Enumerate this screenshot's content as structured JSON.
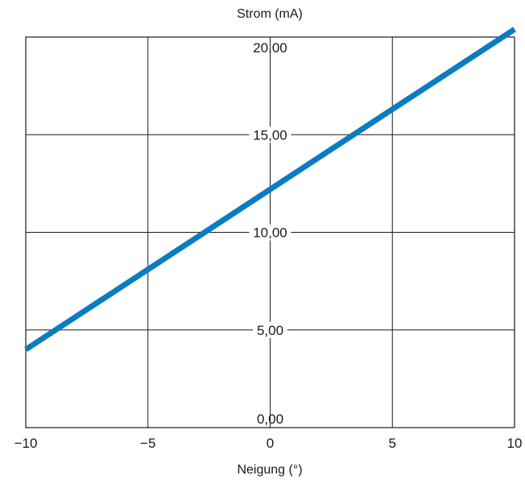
{
  "chart_data": {
    "type": "line",
    "title": "",
    "xlabel": "Neigung (°)",
    "ylabel": "Strom (mA)",
    "xlim": [
      -10,
      10
    ],
    "ylim": [
      0,
      20
    ],
    "x_ticks": [
      -10,
      -5,
      0,
      5,
      10
    ],
    "x_tick_labels": [
      "−10",
      "−5",
      "0",
      "5",
      "10"
    ],
    "y_ticks": [
      0,
      5,
      10,
      15,
      20
    ],
    "y_tick_labels": [
      "0,00",
      "5,00",
      "10,00",
      "15,00",
      "20,00"
    ],
    "grid": true,
    "series": [
      {
        "color": "#0a7cc1",
        "x": [
          -10,
          10
        ],
        "y": [
          4,
          20.4
        ]
      }
    ]
  }
}
